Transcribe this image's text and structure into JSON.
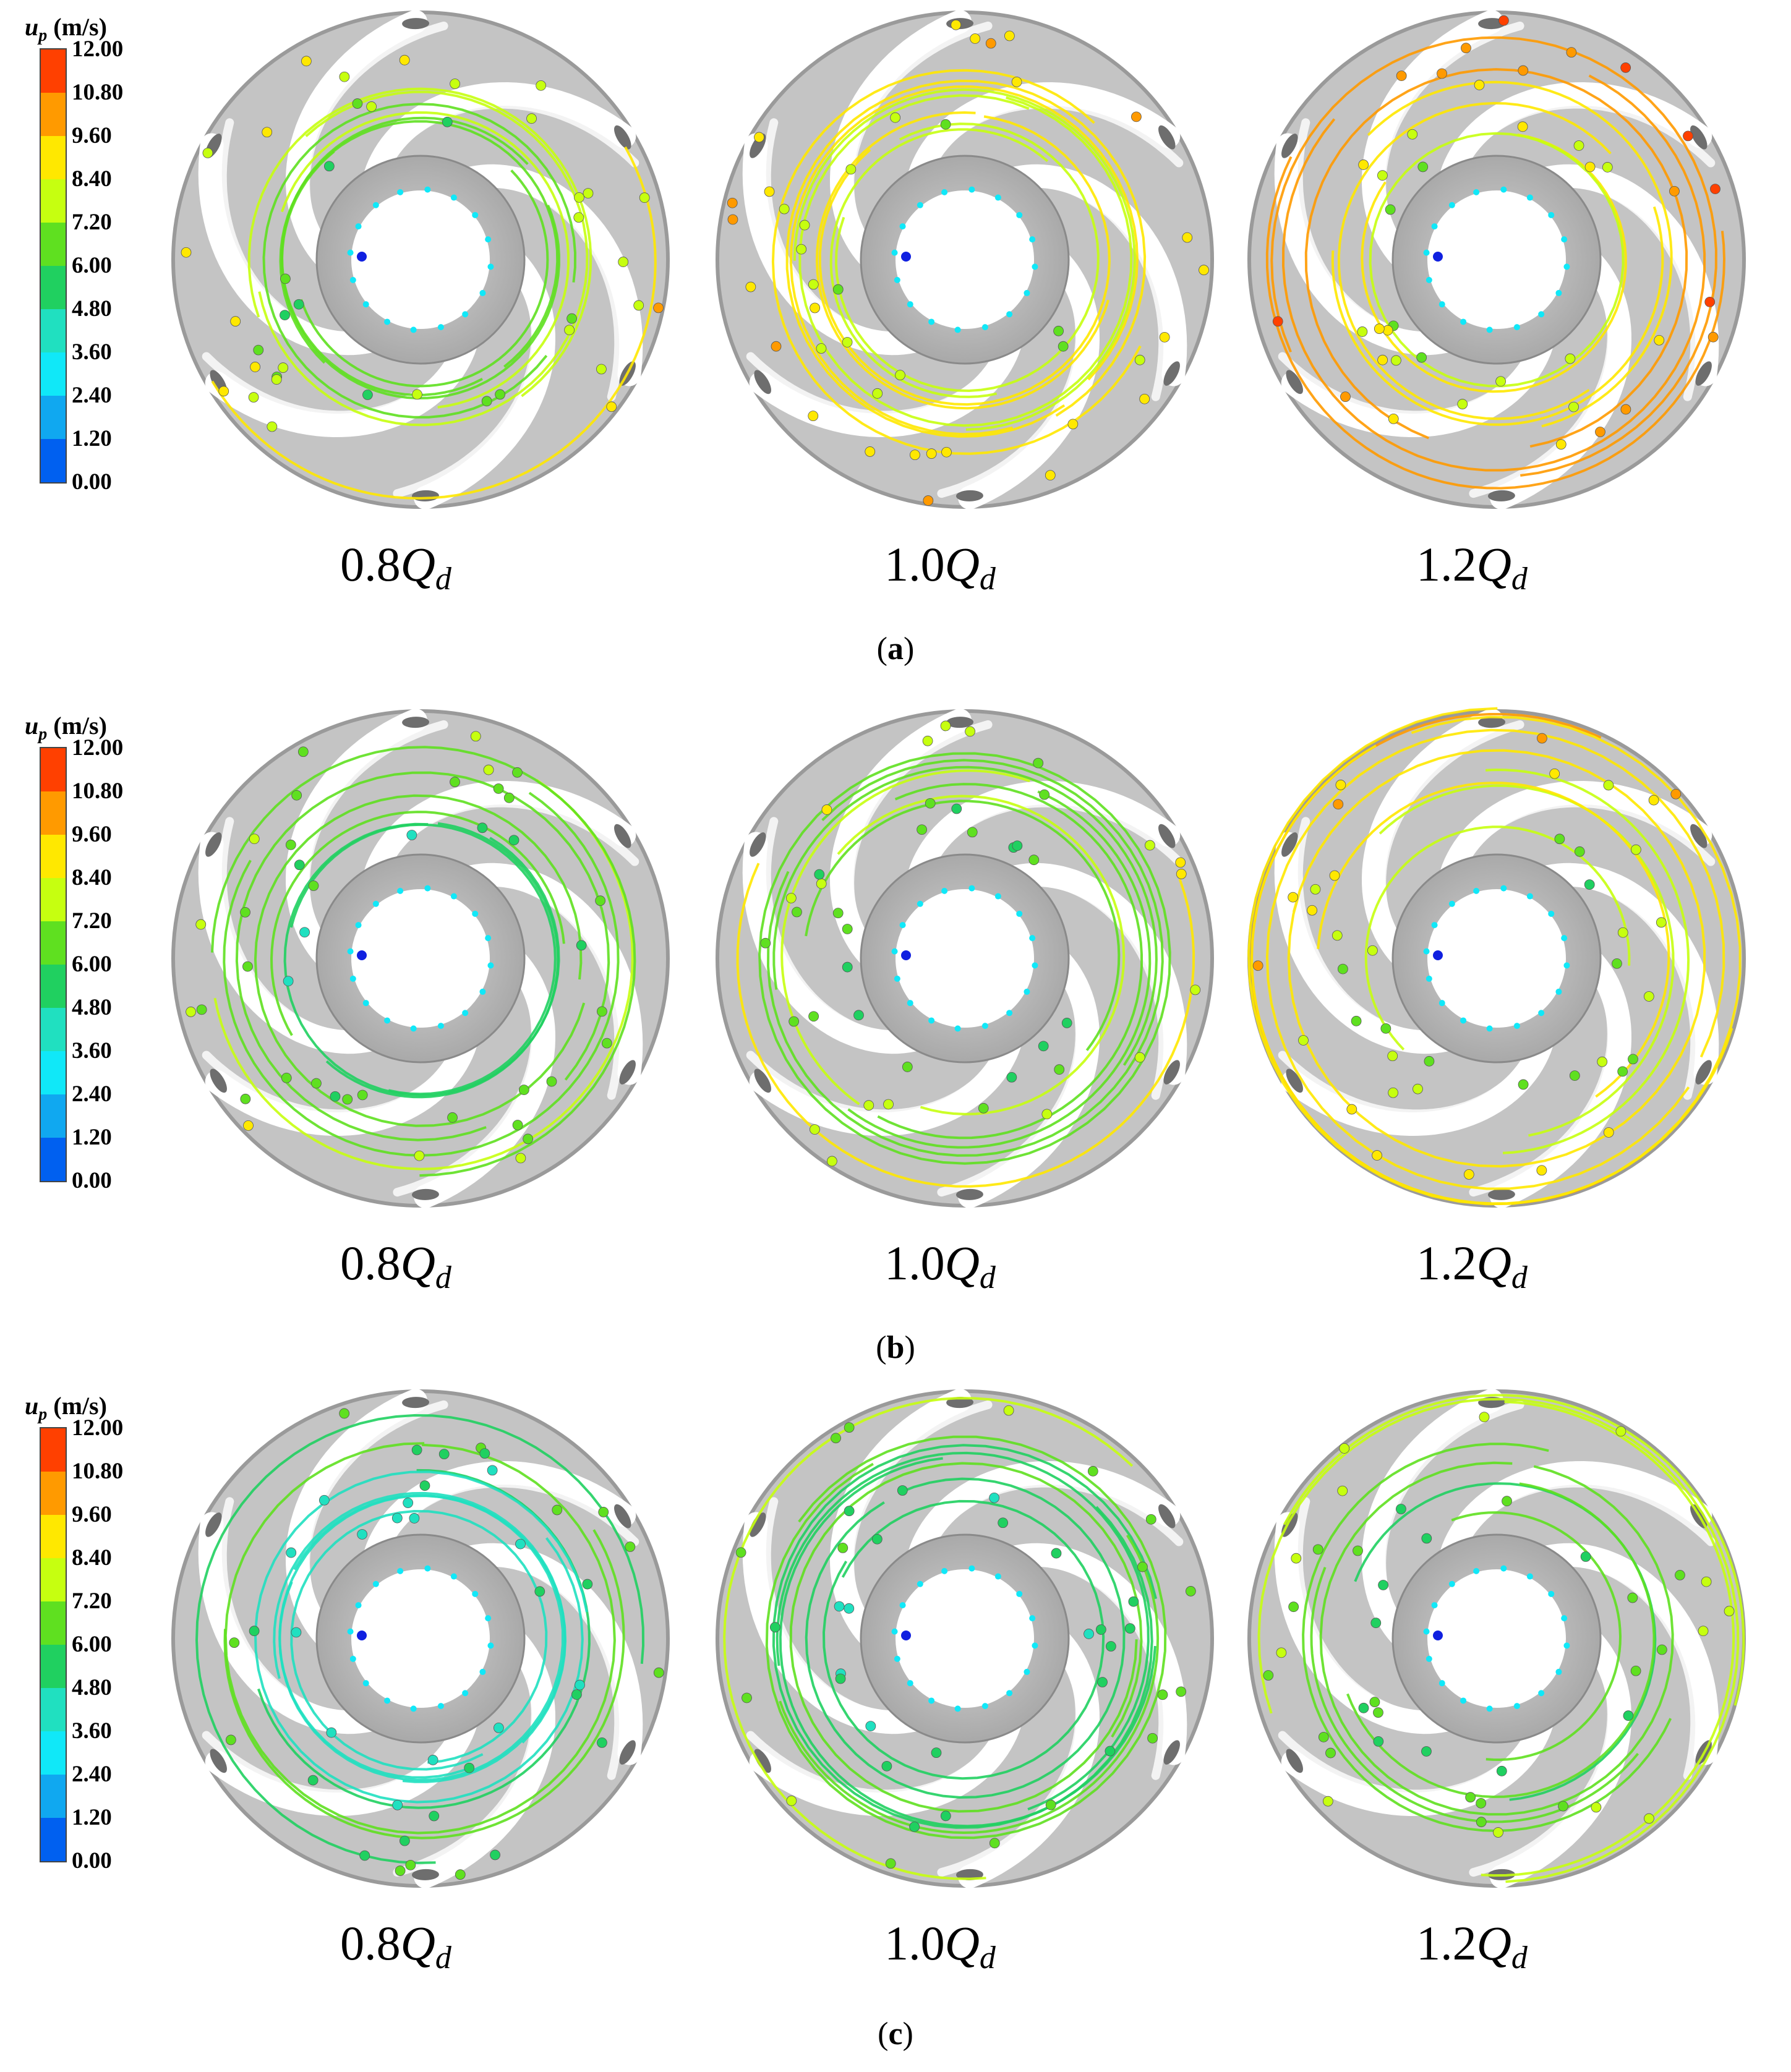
{
  "legend": {
    "variable": "u",
    "subscript": "p",
    "unit": "(m/s)",
    "ticks": [
      "12.00",
      "10.80",
      "9.60",
      "8.40",
      "7.20",
      "6.00",
      "4.80",
      "3.60",
      "2.40",
      "1.20",
      "0.00"
    ],
    "colors": [
      "#ff4000",
      "#ff9a00",
      "#ffe800",
      "#c6ff10",
      "#5fe020",
      "#20d060",
      "#20e0c0",
      "#10e8f8",
      "#10a8f0",
      "#0060f0",
      "#1020e0"
    ]
  },
  "conditions": [
    {
      "coef": "0.8",
      "symbol": "Q",
      "subscript": "d"
    },
    {
      "coef": "1.0",
      "symbol": "Q",
      "subscript": "d"
    },
    {
      "coef": "1.2",
      "symbol": "Q",
      "subscript": "d"
    }
  ],
  "panels": [
    {
      "letter": "a",
      "open": "(",
      "close": ")",
      "speed_bias": [
        0.7,
        0.78,
        0.86
      ]
    },
    {
      "letter": "b",
      "open": "(",
      "close": ")",
      "speed_bias": [
        0.62,
        0.66,
        0.76
      ]
    },
    {
      "letter": "c",
      "open": "(",
      "close": ")",
      "speed_bias": [
        0.52,
        0.56,
        0.64
      ]
    }
  ]
}
